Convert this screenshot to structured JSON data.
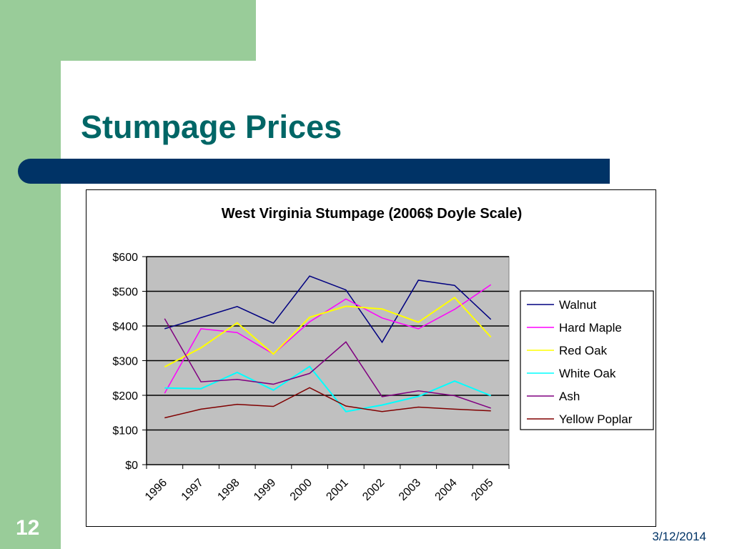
{
  "slide": {
    "title": "Stumpage Prices",
    "number": "12",
    "date": "3/12/2014",
    "colors": {
      "green": "#99cc99",
      "title": "#006666",
      "bar": "#003366",
      "plot_bg": "#c0c0c0"
    }
  },
  "chart_data": {
    "type": "line",
    "title": "West Virginia Stumpage (2006$ Doyle Scale)",
    "xlabel": "",
    "ylabel": "",
    "categories": [
      "1996",
      "1997",
      "1998",
      "1999",
      "2000",
      "2001",
      "2002",
      "2003",
      "2004",
      "2005"
    ],
    "ylim": [
      0,
      600
    ],
    "yticks": [
      0,
      100,
      200,
      300,
      400,
      500,
      600
    ],
    "ytick_labels": [
      "$0",
      "$100",
      "$200",
      "$300",
      "$400",
      "$500",
      "$600"
    ],
    "grid": true,
    "legend_position": "right",
    "series": [
      {
        "name": "Walnut",
        "color": "#000080",
        "values": [
          392,
          424,
          456,
          408,
          544,
          504,
          353,
          532,
          517,
          419
        ]
      },
      {
        "name": "Hard Maple",
        "color": "#ff00ff",
        "values": [
          206,
          392,
          381,
          319,
          412,
          478,
          423,
          392,
          448,
          519
        ]
      },
      {
        "name": "Red Oak",
        "color": "#ffff00",
        "values": [
          282,
          337,
          409,
          319,
          425,
          457,
          449,
          411,
          482,
          368
        ]
      },
      {
        "name": "White Oak",
        "color": "#00ffff",
        "values": [
          221,
          219,
          266,
          215,
          283,
          153,
          172,
          197,
          241,
          199
        ]
      },
      {
        "name": "Ash",
        "color": "#800080",
        "values": [
          421,
          239,
          246,
          232,
          263,
          354,
          196,
          213,
          199,
          163
        ]
      },
      {
        "name": "Yellow Poplar",
        "color": "#800000",
        "values": [
          135,
          160,
          174,
          168,
          222,
          169,
          153,
          166,
          160,
          155
        ]
      }
    ]
  }
}
